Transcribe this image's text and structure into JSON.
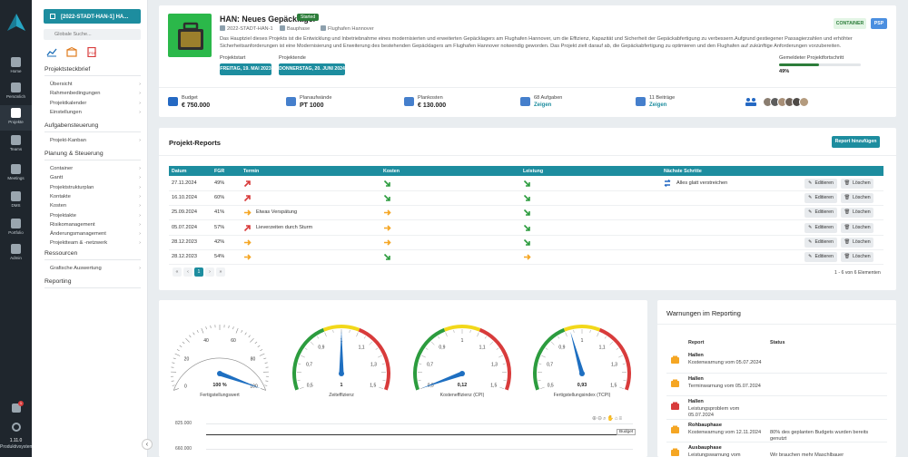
{
  "colors": {
    "teal": "#1d8d9f",
    "rail": "#1f262d",
    "green": "#2c7d3a",
    "red": "#d83b3b",
    "orange": "#f5a623"
  },
  "rail": {
    "items": [
      {
        "label": "Home",
        "icon": "home-icon"
      },
      {
        "label": "Persönlich",
        "icon": "user-icon"
      },
      {
        "label": "Projekte",
        "icon": "projects-icon"
      },
      {
        "label": "Teams",
        "icon": "teams-icon"
      },
      {
        "label": "Meetings",
        "icon": "meetings-icon"
      },
      {
        "label": "DMS",
        "icon": "folder-icon"
      },
      {
        "label": "Portfolio",
        "icon": "portfolio-icon"
      },
      {
        "label": "Admin",
        "icon": "admin-icon"
      }
    ],
    "notification_badge": "1",
    "version": "1.11.0",
    "version_sub": "Produktivsystem"
  },
  "sidebar": {
    "project_button": "[2022-STADT-HAN-1] HA...",
    "search_placeholder": "Globale Suche...",
    "sections": [
      {
        "title": "Projektsteckbrief",
        "items": [
          "Übersicht",
          "Rahmenbedingungen",
          "Projektkalender",
          "Einstellungen"
        ]
      },
      {
        "title": "Aufgabensteuerung",
        "items": [
          "Projekt-Kanban"
        ]
      },
      {
        "title": "Planung & Steuerung",
        "items": [
          "Container",
          "Gantt",
          "Projektstrukturplan",
          "Kontakte",
          "Kosten",
          "Projektakte",
          "Risikomanagement",
          "Änderungsmanagement",
          "Projektteam & -netzwerk"
        ]
      },
      {
        "title": "Ressourcen",
        "items": [
          "Grafische Auswertung"
        ]
      },
      {
        "title": "Reporting",
        "items": []
      }
    ]
  },
  "project": {
    "title": "HAN: Neues Gepäcklager",
    "status": "Started",
    "code": "2022-STADT-HAN-1",
    "type": "Bauphase",
    "location": "Flughafen Hannover",
    "description": "Das Hauptziel dieses Projekts ist die Entwicklung und Inbetriebnahme eines modernisierten und erweiterten Gepäcklagers am Flughafen Hannover, um die Effizienz, Kapazität und Sicherheit der Gepäckabfertigung zu verbessern.Aufgrund gestiegener Passagierzahlen und erhöhter Sicherheitsanforderungen ist eine Modernisierung und Erweiterung des bestehenden Gepäcklagers am Flughafen Hannover notwendig geworden. Das Projekt zielt darauf ab, die Gepäckabfertigung zu optimieren und den Flughafen auf zukünftige Anforderungen vorzubereiten.",
    "tag_container": "CONTAINER",
    "tag_psp": "PSP",
    "start_label": "Projektstart",
    "start_value": "FREITAG, 19. MAI 2023",
    "end_label": "Projektende",
    "end_value": "DONNERSTAG, 20. JUNI 2024",
    "progress_label": "Gemeldeter Projektfortschritt",
    "progress_value": "49%",
    "progress_fraction": 0.49,
    "stats": [
      {
        "label": "Budget",
        "value": "€ 750.000",
        "icon": "wallet-icon"
      },
      {
        "label": "Planaufwände",
        "value": "PT 1000",
        "icon": "calendar-clock-icon"
      },
      {
        "label": "Plankosten",
        "value": "€ 130.000",
        "icon": "money-icon"
      },
      {
        "label": "68 Aufgaben",
        "value": "Zeigen",
        "icon": "tasks-icon"
      },
      {
        "label": "11 Beiträge",
        "value": "Zeigen",
        "icon": "list-icon"
      }
    ]
  },
  "reports": {
    "title": "Projekt-Reports",
    "add_button": "Report hinzufügen",
    "columns": [
      "Datum",
      "FGR",
      "Termin",
      "Kosten",
      "Leistung",
      "Nächste Schritte"
    ],
    "edit_label": "Editieren",
    "delete_label": "Löschen",
    "rows": [
      {
        "date": "27.11.2024",
        "fgr": "49%",
        "termin": "up-red",
        "termin_text": "",
        "kosten": "down-green",
        "leistung": "down-green",
        "next": "Alles glatt verstreichen"
      },
      {
        "date": "16.10.2024",
        "fgr": "60%",
        "termin": "up-red",
        "termin_text": "",
        "kosten": "down-green",
        "leistung": "down-green",
        "next": ""
      },
      {
        "date": "25.09.2024",
        "fgr": "41%",
        "termin": "right-orange",
        "termin_text": "Etwas Verspätung",
        "kosten": "right-orange",
        "leistung": "down-green",
        "next": ""
      },
      {
        "date": "05.07.2024",
        "fgr": "57%",
        "termin": "up-red",
        "termin_text": "Lieverzeiten durch Sturm",
        "kosten": "right-orange",
        "leistung": "down-green",
        "next": ""
      },
      {
        "date": "28.12.2023",
        "fgr": "42%",
        "termin": "right-orange",
        "termin_text": "",
        "kosten": "right-orange",
        "leistung": "down-green",
        "next": ""
      },
      {
        "date": "28.12.2023",
        "fgr": "54%",
        "termin": "right-orange",
        "termin_text": "",
        "kosten": "down-green",
        "leistung": "right-orange",
        "next": ""
      }
    ],
    "pager": {
      "first": "«",
      "prev": "‹",
      "page": "1",
      "next": "›",
      "last": "»"
    },
    "page_info": "1 - 6 von 6 Elementen"
  },
  "gauges": [
    {
      "caption": "Fertigstellungswert",
      "value_label": "100 %",
      "ticks": [
        "0",
        "20",
        "40",
        "60",
        "80",
        "100"
      ],
      "min": 0,
      "max": 100,
      "value": 100
    },
    {
      "caption": "Zeiteffizienz",
      "value_label": "1",
      "ticks": [
        "0,5",
        "0,7",
        "0,9",
        "1",
        "1,1",
        "1,3",
        "1,5"
      ],
      "min": 0.5,
      "max": 1.5,
      "value": 1
    },
    {
      "caption": "Kosteneffizienz (CPI)",
      "value_label": "0,12",
      "ticks": [
        "0,5",
        "0,7",
        "0,9",
        "1",
        "1,1",
        "1,3",
        "1,5"
      ],
      "min": 0.5,
      "max": 1.5,
      "value": 0.12
    },
    {
      "caption": "Fertigstellungsindex (TCPI)",
      "value_label": "0,93",
      "ticks": [
        "0,5",
        "0,7",
        "0,9",
        "1",
        "1,1",
        "1,3",
        "1,5"
      ],
      "min": 0.5,
      "max": 1.5,
      "value": 0.93
    }
  ],
  "chart": {
    "y_top": "825.000",
    "y_mid": "660.000",
    "series_label": "Budget"
  },
  "warnings": {
    "title": "Warnungen im Reporting",
    "col_report": "Report",
    "col_status": "Status",
    "items": [
      {
        "name": "Hallen",
        "desc": "Kostenwarnung vom 05.07.2024",
        "status": "",
        "icon": "warning-orange-icon"
      },
      {
        "name": "Hallen",
        "desc": "Terminwarnung vom 05.07.2024",
        "status": "",
        "icon": "warning-orange-icon"
      },
      {
        "name": "Hallen",
        "desc": "Leistungsproblem vom 05.07.2024",
        "status": "",
        "icon": "warning-red-icon"
      },
      {
        "name": "Rohbauphase",
        "desc": "Kostenwarnung vom 12.11.2024",
        "status": "80% des geplanten Budgets wurden bereits genutzt",
        "icon": "warning-orange-icon"
      },
      {
        "name": "Ausbauphase",
        "desc": "Leistungswarnung vom",
        "status": "Wir brauchen mehr Maschlbauer",
        "icon": "warning-orange-icon"
      }
    ]
  }
}
